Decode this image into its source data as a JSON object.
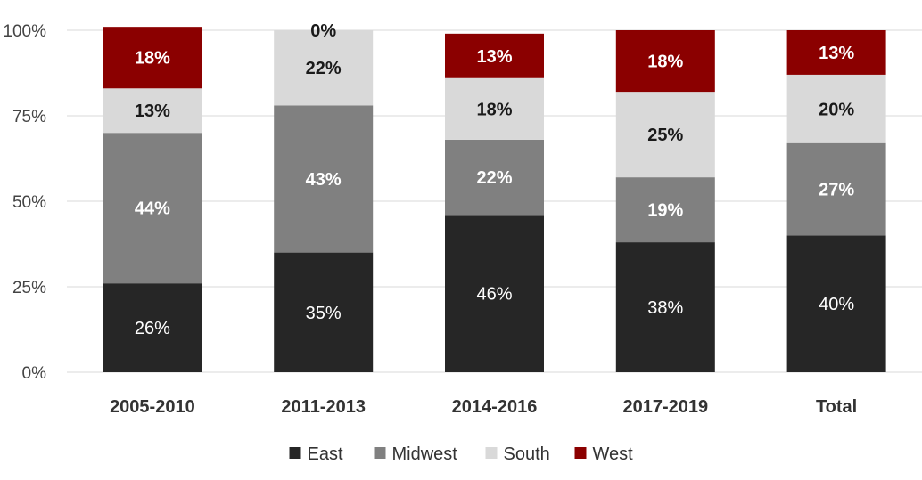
{
  "chart_data": {
    "type": "bar",
    "stacked": true,
    "title": "",
    "xlabel": "",
    "ylabel": "",
    "ylim": [
      0,
      100
    ],
    "y_ticks": [
      "0%",
      "25%",
      "50%",
      "75%",
      "100%"
    ],
    "y_tick_values": [
      0,
      25,
      50,
      75,
      100
    ],
    "grid": true,
    "legend_position": "bottom",
    "categories": [
      "2005-2010",
      "2011-2013",
      "2014-2016",
      "2017-2019",
      "Total"
    ],
    "series": [
      {
        "name": "East",
        "color": "#262626",
        "label_color": "#ffffff",
        "values": [
          26,
          35,
          46,
          38,
          40
        ],
        "labels": [
          "26%",
          "35%",
          "46%",
          "38%",
          "40%"
        ]
      },
      {
        "name": "Midwest",
        "color": "#808080",
        "label_color": "#ffffff",
        "values": [
          44,
          43,
          22,
          19,
          27
        ],
        "labels": [
          "44%",
          "43%",
          "22%",
          "19%",
          "27%"
        ]
      },
      {
        "name": "South",
        "color": "#d9d9d9",
        "label_color": "#1a1a1a",
        "values": [
          13,
          22,
          18,
          25,
          20
        ],
        "labels": [
          "13%",
          "22%",
          "18%",
          "25%",
          "20%"
        ]
      },
      {
        "name": "West",
        "color": "#8b0000",
        "label_color": "#ffffff",
        "values": [
          18,
          0,
          13,
          18,
          13
        ],
        "labels": [
          "18%",
          "0%",
          "13%",
          "18%",
          "13%"
        ]
      }
    ]
  }
}
